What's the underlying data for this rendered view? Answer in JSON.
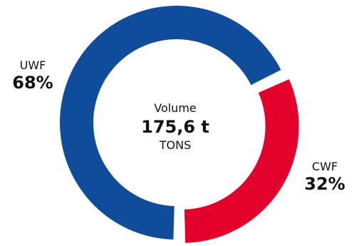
{
  "chart_data": {
    "type": "pie",
    "donut": true,
    "center": {
      "title": "Volume",
      "value": "175,6 t",
      "unit": "TONS"
    },
    "slices": [
      {
        "label": "UWF",
        "value": 68,
        "value_label": "68%",
        "color": "#0f4c9b"
      },
      {
        "label": "CWF",
        "value": 32,
        "value_label": "32%",
        "color": "#e3002b",
        "exploded": true
      }
    ]
  }
}
